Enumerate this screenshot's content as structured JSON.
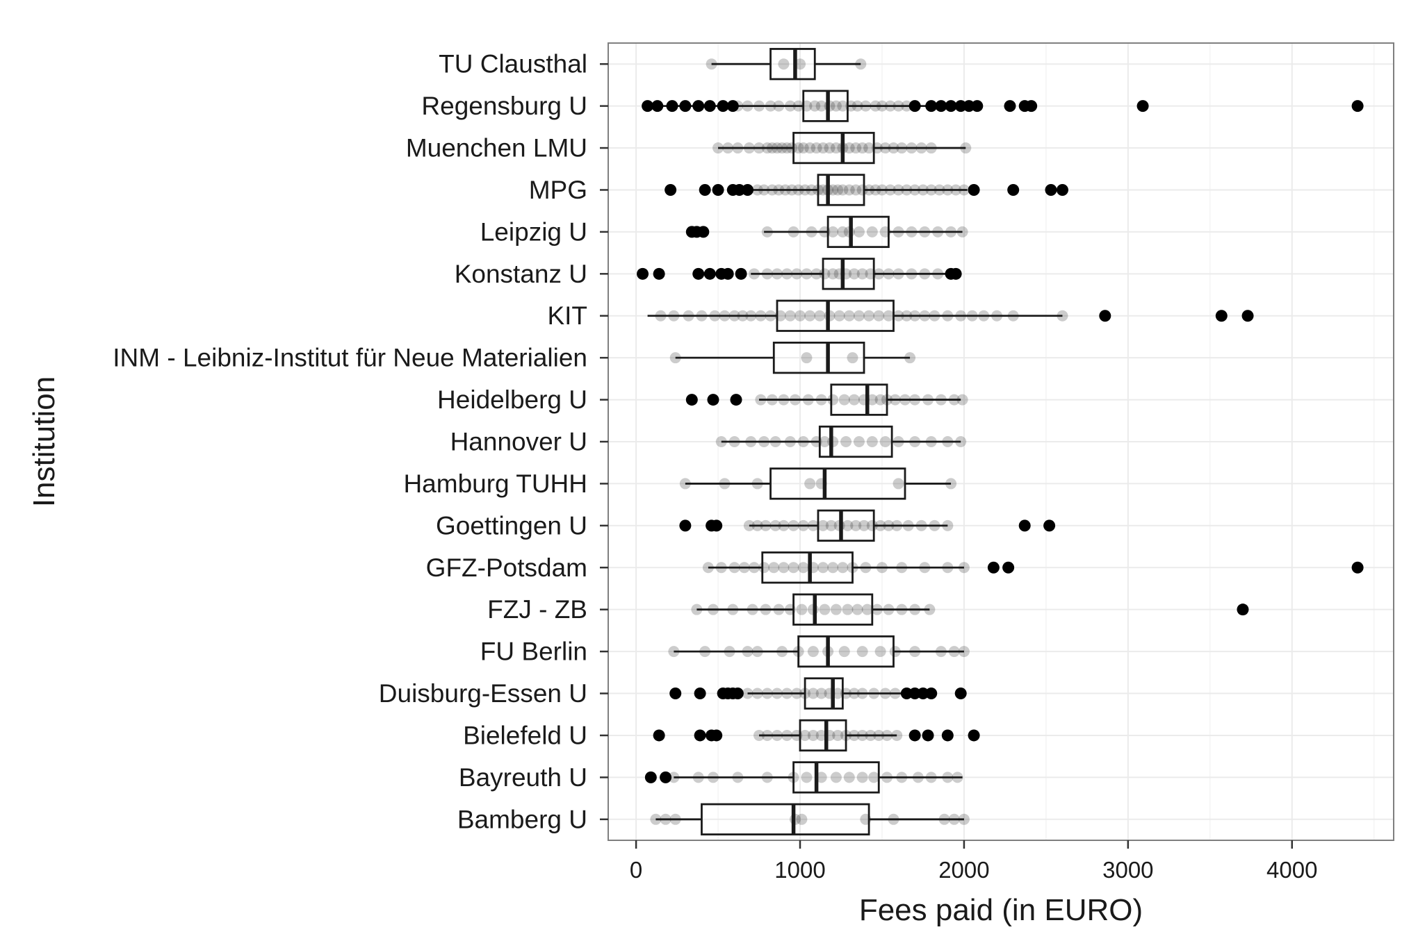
{
  "chart_data": {
    "type": "boxplot",
    "title": "",
    "xlabel": "Fees paid (in EURO)",
    "ylabel": "Institution",
    "xlim": [
      -170,
      4620
    ],
    "xticks": [
      0,
      1000,
      2000,
      3000,
      4000
    ],
    "xtick_labels": [
      "0",
      "1000",
      "2000",
      "3000",
      "4000"
    ],
    "grid": true,
    "colors": {
      "box": "#1a1a1a",
      "point": "#000000",
      "grid": "#ebebeb",
      "panel_border": "#7f7f7f",
      "background": "#ffffff"
    },
    "categories": [
      "TU Clausthal",
      "Regensburg U",
      "Muenchen LMU",
      "MPG",
      "Leipzig U",
      "Konstanz U",
      "KIT",
      "INM - Leibniz-Institut für Neue Materialien",
      "Heidelberg U",
      "Hannover U",
      "Hamburg TUHH",
      "Goettingen U",
      "GFZ-Potsdam",
      "FZJ - ZB",
      "FU Berlin",
      "Duisburg-Essen U",
      "Bielefeld U",
      "Bayreuth U",
      "Bamberg U"
    ],
    "boxes": [
      {
        "category": "TU Clausthal",
        "whisker_low": 460,
        "q1": 820,
        "median": 970,
        "q3": 1090,
        "whisker_high": 1370
      },
      {
        "category": "Regensburg U",
        "whisker_low": 70,
        "q1": 1020,
        "median": 1170,
        "q3": 1290,
        "whisker_high": 2080
      },
      {
        "category": "Muenchen LMU",
        "whisker_low": 500,
        "q1": 960,
        "median": 1260,
        "q3": 1450,
        "whisker_high": 2010
      },
      {
        "category": "MPG",
        "whisker_low": 710,
        "q1": 1110,
        "median": 1170,
        "q3": 1390,
        "whisker_high": 2020
      },
      {
        "category": "Leipzig U",
        "whisker_low": 780,
        "q1": 1170,
        "median": 1310,
        "q3": 1540,
        "whisker_high": 1990
      },
      {
        "category": "Konstanz U",
        "whisker_low": 700,
        "q1": 1140,
        "median": 1260,
        "q3": 1450,
        "whisker_high": 1950
      },
      {
        "category": "KIT",
        "whisker_low": 70,
        "q1": 860,
        "median": 1170,
        "q3": 1570,
        "whisker_high": 2600
      },
      {
        "category": "INM - Leibniz-Institut für Neue Materialien",
        "whisker_low": 240,
        "q1": 840,
        "median": 1170,
        "q3": 1390,
        "whisker_high": 1670
      },
      {
        "category": "Heidelberg U",
        "whisker_low": 750,
        "q1": 1190,
        "median": 1410,
        "q3": 1530,
        "whisker_high": 1980
      },
      {
        "category": "Hannover U",
        "whisker_low": 520,
        "q1": 1120,
        "median": 1190,
        "q3": 1560,
        "whisker_high": 1980
      },
      {
        "category": "Hamburg TUHH",
        "whisker_low": 300,
        "q1": 820,
        "median": 1150,
        "q3": 1640,
        "whisker_high": 1920
      },
      {
        "category": "Goettingen U",
        "whisker_low": 690,
        "q1": 1110,
        "median": 1250,
        "q3": 1450,
        "whisker_high": 1900
      },
      {
        "category": "GFZ-Potsdam",
        "whisker_low": 440,
        "q1": 770,
        "median": 1060,
        "q3": 1320,
        "whisker_high": 2000
      },
      {
        "category": "FZJ - ZB",
        "whisker_low": 370,
        "q1": 960,
        "median": 1090,
        "q3": 1440,
        "whisker_high": 1790
      },
      {
        "category": "FU Berlin",
        "whisker_low": 230,
        "q1": 990,
        "median": 1170,
        "q3": 1570,
        "whisker_high": 2000
      },
      {
        "category": "Duisburg-Essen U",
        "whisker_low": 680,
        "q1": 1030,
        "median": 1200,
        "q3": 1260,
        "whisker_high": 1620
      },
      {
        "category": "Bielefeld U",
        "whisker_low": 750,
        "q1": 1000,
        "median": 1160,
        "q3": 1280,
        "whisker_high": 1590
      },
      {
        "category": "Bayreuth U",
        "whisker_low": 230,
        "q1": 960,
        "median": 1100,
        "q3": 1480,
        "whisker_high": 1990
      },
      {
        "category": "Bamberg U",
        "whisker_low": 120,
        "q1": 400,
        "median": 960,
        "q3": 1420,
        "whisker_high": 2000
      }
    ],
    "outliers": [
      {
        "category": "Regensburg U",
        "values": [
          70,
          130,
          220,
          300,
          380,
          450,
          530,
          590,
          1700,
          1800,
          1860,
          1920,
          1980,
          2030,
          2080,
          2280,
          2370,
          2410,
          3090,
          4400
        ]
      },
      {
        "category": "MPG",
        "values": [
          210,
          420,
          500,
          590,
          630,
          680,
          2060,
          2300,
          2530,
          2600
        ]
      },
      {
        "category": "Leipzig U",
        "values": [
          340,
          370,
          410
        ]
      },
      {
        "category": "Konstanz U",
        "values": [
          40,
          140,
          380,
          450,
          520,
          560,
          640,
          1920,
          1950
        ]
      },
      {
        "category": "KIT",
        "values": [
          2860,
          3570,
          3730
        ]
      },
      {
        "category": "Heidelberg U",
        "values": [
          340,
          470,
          610
        ]
      },
      {
        "category": "Goettingen U",
        "values": [
          300,
          460,
          490,
          2370,
          2520
        ]
      },
      {
        "category": "GFZ-Potsdam",
        "values": [
          2180,
          2270,
          4400
        ]
      },
      {
        "category": "FZJ - ZB",
        "values": [
          3700
        ]
      },
      {
        "category": "Duisburg-Essen U",
        "values": [
          240,
          390,
          530,
          560,
          590,
          620,
          1650,
          1700,
          1750,
          1800,
          1980
        ]
      },
      {
        "category": "Bielefeld U",
        "values": [
          140,
          390,
          460,
          490,
          1700,
          1780,
          1900,
          2060
        ]
      },
      {
        "category": "Bayreuth U",
        "values": [
          90,
          180
        ]
      }
    ],
    "jitter_points": [
      {
        "category": "TU Clausthal",
        "values": [
          460,
          900,
          1000,
          1370
        ]
      },
      {
        "category": "Regensburg U",
        "values": [
          620,
          680,
          750,
          820,
          870,
          940,
          990,
          1040,
          1090,
          1130,
          1180,
          1220,
          1260,
          1310,
          1350,
          1400,
          1460,
          1500,
          1550,
          1600,
          1650
        ]
      },
      {
        "category": "Muenchen LMU",
        "values": [
          500,
          560,
          620,
          690,
          750,
          800,
          830,
          860,
          890,
          920,
          950,
          990,
          1020,
          1060,
          1100,
          1140,
          1180,
          1220,
          1260,
          1300,
          1340,
          1380,
          1420,
          1470,
          1520,
          1570,
          1620,
          1680,
          1740,
          1800,
          2010
        ]
      },
      {
        "category": "MPG",
        "values": [
          740,
          780,
          830,
          870,
          910,
          950,
          990,
          1030,
          1070,
          1110,
          1140,
          1170,
          1200,
          1230,
          1260,
          1300,
          1340,
          1380,
          1420,
          1460,
          1500,
          1550,
          1600,
          1650,
          1700,
          1750,
          1800,
          1850,
          1900,
          1950,
          2000
        ]
      },
      {
        "category": "Leipzig U",
        "values": [
          800,
          960,
          1070,
          1150,
          1200,
          1260,
          1300,
          1360,
          1440,
          1520,
          1600,
          1680,
          1760,
          1840,
          1920,
          1990
        ]
      },
      {
        "category": "Konstanz U",
        "values": [
          720,
          800,
          860,
          920,
          980,
          1040,
          1100,
          1150,
          1200,
          1240,
          1280,
          1330,
          1380,
          1430,
          1480,
          1540,
          1600,
          1680,
          1760,
          1840
        ]
      },
      {
        "category": "KIT",
        "values": [
          150,
          230,
          320,
          400,
          480,
          540,
          600,
          650,
          700,
          760,
          820,
          880,
          940,
          1000,
          1060,
          1120,
          1180,
          1240,
          1300,
          1360,
          1420,
          1480,
          1540,
          1600,
          1650,
          1700,
          1760,
          1820,
          1900,
          1980,
          2050,
          2120,
          2200,
          2300,
          2600
        ]
      },
      {
        "category": "INM - Leibniz-Institut für Neue Materialien",
        "values": [
          240,
          1040,
          1320,
          1670
        ]
      },
      {
        "category": "Heidelberg U",
        "values": [
          760,
          830,
          900,
          970,
          1050,
          1130,
          1200,
          1270,
          1330,
          1390,
          1440,
          1490,
          1530,
          1580,
          1640,
          1700,
          1780,
          1860,
          1940,
          1990
        ]
      },
      {
        "category": "Hannover U",
        "values": [
          520,
          600,
          700,
          780,
          850,
          940,
          1020,
          1100,
          1150,
          1200,
          1280,
          1360,
          1440,
          1520,
          1600,
          1700,
          1800,
          1900,
          1980
        ]
      },
      {
        "category": "Hamburg TUHH",
        "values": [
          300,
          540,
          740,
          1060,
          1130,
          1600,
          1920
        ]
      },
      {
        "category": "Goettingen U",
        "values": [
          690,
          740,
          790,
          850,
          900,
          960,
          1020,
          1080,
          1140,
          1190,
          1240,
          1290,
          1340,
          1390,
          1440,
          1490,
          1540,
          1590,
          1660,
          1740,
          1820,
          1900
        ]
      },
      {
        "category": "GFZ-Potsdam",
        "values": [
          440,
          520,
          600,
          660,
          720,
          780,
          840,
          900,
          960,
          1020,
          1080,
          1140,
          1200,
          1260,
          1320,
          1400,
          1500,
          1620,
          1760,
          1900,
          2000
        ]
      },
      {
        "category": "FZJ - ZB",
        "values": [
          370,
          470,
          590,
          710,
          790,
          870,
          940,
          1010,
          1080,
          1150,
          1220,
          1290,
          1350,
          1410,
          1470,
          1540,
          1620,
          1700,
          1790
        ]
      },
      {
        "category": "FU Berlin",
        "values": [
          230,
          420,
          570,
          680,
          740,
          890,
          990,
          1080,
          1170,
          1270,
          1380,
          1490,
          1580,
          1700,
          1860,
          1940,
          2000
        ]
      },
      {
        "category": "Duisburg-Essen U",
        "values": [
          680,
          740,
          800,
          860,
          920,
          980,
          1030,
          1080,
          1130,
          1180,
          1230,
          1280,
          1330,
          1380,
          1450,
          1520,
          1580
        ]
      },
      {
        "category": "Bielefeld U",
        "values": [
          750,
          800,
          860,
          920,
          980,
          1030,
          1080,
          1130,
          1180,
          1230,
          1280,
          1330,
          1380,
          1430,
          1480,
          1530,
          1590
        ]
      },
      {
        "category": "Bayreuth U",
        "values": [
          230,
          380,
          470,
          620,
          800,
          960,
          1040,
          1130,
          1220,
          1300,
          1380,
          1450,
          1530,
          1620,
          1720,
          1800,
          1900,
          1960
        ]
      },
      {
        "category": "Bamberg U",
        "values": [
          120,
          180,
          240,
          970,
          1010,
          1400,
          1570,
          1880,
          1940,
          2000
        ]
      }
    ]
  }
}
